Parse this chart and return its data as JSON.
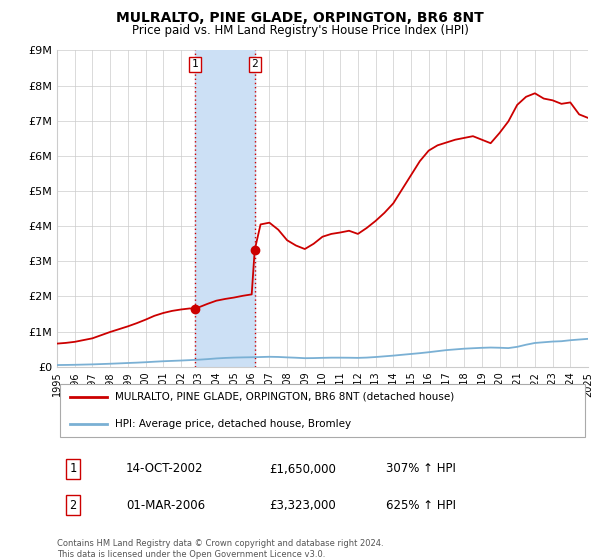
{
  "title": "MULRALTO, PINE GLADE, ORPINGTON, BR6 8NT",
  "subtitle": "Price paid vs. HM Land Registry's House Price Index (HPI)",
  "ylim": [
    0,
    9000000
  ],
  "xlim_start": 1995,
  "xlim_end": 2025,
  "yticks": [
    0,
    1000000,
    2000000,
    3000000,
    4000000,
    5000000,
    6000000,
    7000000,
    8000000,
    9000000
  ],
  "ytick_labels": [
    "£0",
    "£1M",
    "£2M",
    "£3M",
    "£4M",
    "£5M",
    "£6M",
    "£7M",
    "£8M",
    "£9M"
  ],
  "xticks": [
    1995,
    1996,
    1997,
    1998,
    1999,
    2000,
    2001,
    2002,
    2003,
    2004,
    2005,
    2006,
    2007,
    2008,
    2009,
    2010,
    2011,
    2012,
    2013,
    2014,
    2015,
    2016,
    2017,
    2018,
    2019,
    2020,
    2021,
    2022,
    2023,
    2024,
    2025
  ],
  "sale1_x": 2002.79,
  "sale1_y": 1650000,
  "sale2_x": 2006.17,
  "sale2_y": 3323000,
  "sale1_label": "1",
  "sale2_label": "2",
  "shade_x1": 2002.79,
  "shade_x2": 2006.17,
  "shade_color": "#cce0f5",
  "vline_color": "#cc0000",
  "red_line_color": "#cc0000",
  "blue_line_color": "#7ab0d4",
  "point_color": "#cc0000",
  "legend1_label": "MULRALTO, PINE GLADE, ORPINGTON, BR6 8NT (detached house)",
  "legend2_label": "HPI: Average price, detached house, Bromley",
  "table_row1": [
    "1",
    "14-OCT-2002",
    "£1,650,000",
    "307% ↑ HPI"
  ],
  "table_row2": [
    "2",
    "01-MAR-2006",
    "£3,323,000",
    "625% ↑ HPI"
  ],
  "footer_line1": "Contains HM Land Registry data © Crown copyright and database right 2024.",
  "footer_line2": "This data is licensed under the Open Government Licence v3.0.",
  "hpi_x": [
    1995.0,
    1995.5,
    1996.0,
    1996.5,
    1997.0,
    1997.5,
    1998.0,
    1998.5,
    1999.0,
    1999.5,
    2000.0,
    2000.5,
    2001.0,
    2001.5,
    2002.0,
    2002.5,
    2003.0,
    2003.5,
    2004.0,
    2004.5,
    2005.0,
    2005.5,
    2006.0,
    2006.5,
    2007.0,
    2007.5,
    2008.0,
    2008.5,
    2009.0,
    2009.5,
    2010.0,
    2010.5,
    2011.0,
    2011.5,
    2012.0,
    2012.5,
    2013.0,
    2013.5,
    2014.0,
    2014.5,
    2015.0,
    2015.5,
    2016.0,
    2016.5,
    2017.0,
    2017.5,
    2018.0,
    2018.5,
    2019.0,
    2019.5,
    2020.0,
    2020.5,
    2021.0,
    2021.5,
    2022.0,
    2022.5,
    2023.0,
    2023.5,
    2024.0,
    2024.5,
    2025.0
  ],
  "hpi_y": [
    50000,
    53000,
    57000,
    63000,
    69000,
    78000,
    87000,
    97000,
    108000,
    118000,
    130000,
    145000,
    158000,
    168000,
    178000,
    190000,
    202000,
    218000,
    238000,
    252000,
    262000,
    268000,
    272000,
    278000,
    285000,
    280000,
    268000,
    258000,
    245000,
    248000,
    255000,
    260000,
    260000,
    258000,
    254000,
    262000,
    278000,
    298000,
    318000,
    342000,
    365000,
    388000,
    415000,
    445000,
    475000,
    495000,
    515000,
    528000,
    540000,
    548000,
    542000,
    532000,
    568000,
    628000,
    678000,
    698000,
    718000,
    728000,
    756000,
    776000,
    795000
  ],
  "red_x": [
    1995.0,
    1995.5,
    1996.0,
    1996.5,
    1997.0,
    1997.5,
    1998.0,
    1998.5,
    1999.0,
    1999.5,
    2000.0,
    2000.5,
    2001.0,
    2001.5,
    2002.0,
    2002.5,
    2002.79,
    2003.0,
    2003.5,
    2004.0,
    2004.5,
    2005.0,
    2005.5,
    2006.0,
    2006.17,
    2006.5,
    2007.0,
    2007.5,
    2008.0,
    2008.5,
    2009.0,
    2009.5,
    2010.0,
    2010.5,
    2011.0,
    2011.5,
    2012.0,
    2012.5,
    2013.0,
    2013.5,
    2014.0,
    2014.5,
    2015.0,
    2015.5,
    2016.0,
    2016.5,
    2017.0,
    2017.5,
    2018.0,
    2018.5,
    2019.0,
    2019.5,
    2020.0,
    2020.5,
    2021.0,
    2021.5,
    2022.0,
    2022.5,
    2023.0,
    2023.5,
    2024.0,
    2024.5,
    2025.0
  ],
  "red_y": [
    660000,
    680000,
    710000,
    760000,
    810000,
    900000,
    990000,
    1070000,
    1150000,
    1240000,
    1340000,
    1450000,
    1530000,
    1590000,
    1630000,
    1660000,
    1650000,
    1690000,
    1790000,
    1880000,
    1930000,
    1970000,
    2020000,
    2060000,
    3323000,
    4050000,
    4100000,
    3900000,
    3600000,
    3450000,
    3350000,
    3500000,
    3700000,
    3780000,
    3820000,
    3870000,
    3780000,
    3950000,
    4150000,
    4380000,
    4650000,
    5050000,
    5450000,
    5850000,
    6150000,
    6300000,
    6380000,
    6460000,
    6510000,
    6560000,
    6460000,
    6360000,
    6650000,
    6980000,
    7450000,
    7680000,
    7780000,
    7630000,
    7580000,
    7480000,
    7520000,
    7180000,
    7080000
  ]
}
